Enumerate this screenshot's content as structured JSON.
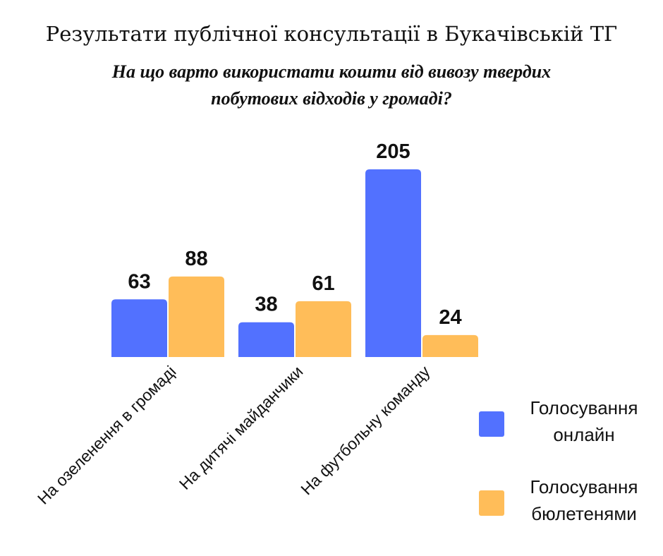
{
  "chart_data": {
    "type": "bar",
    "title": "Результати публічної консультації в Букачівській ТГ",
    "subtitle_lines": [
      "На що варто використати кошти від вивозу твердих",
      "побутових відходів у громаді?"
    ],
    "categories": [
      "На озеленення в громаді",
      "На дитячі майданчики",
      "На футбольну команду"
    ],
    "series": [
      {
        "name": "Голосування онлайн",
        "color": "#5271FF",
        "values": [
          63,
          38,
          205
        ]
      },
      {
        "name": "Голосування бюлетенями",
        "color": "#FFBD59",
        "values": [
          88,
          61,
          24
        ]
      }
    ],
    "xlabel": "",
    "ylabel": "",
    "ylim": [
      0,
      205
    ],
    "grid": false,
    "legend_position": "bottom-right"
  }
}
